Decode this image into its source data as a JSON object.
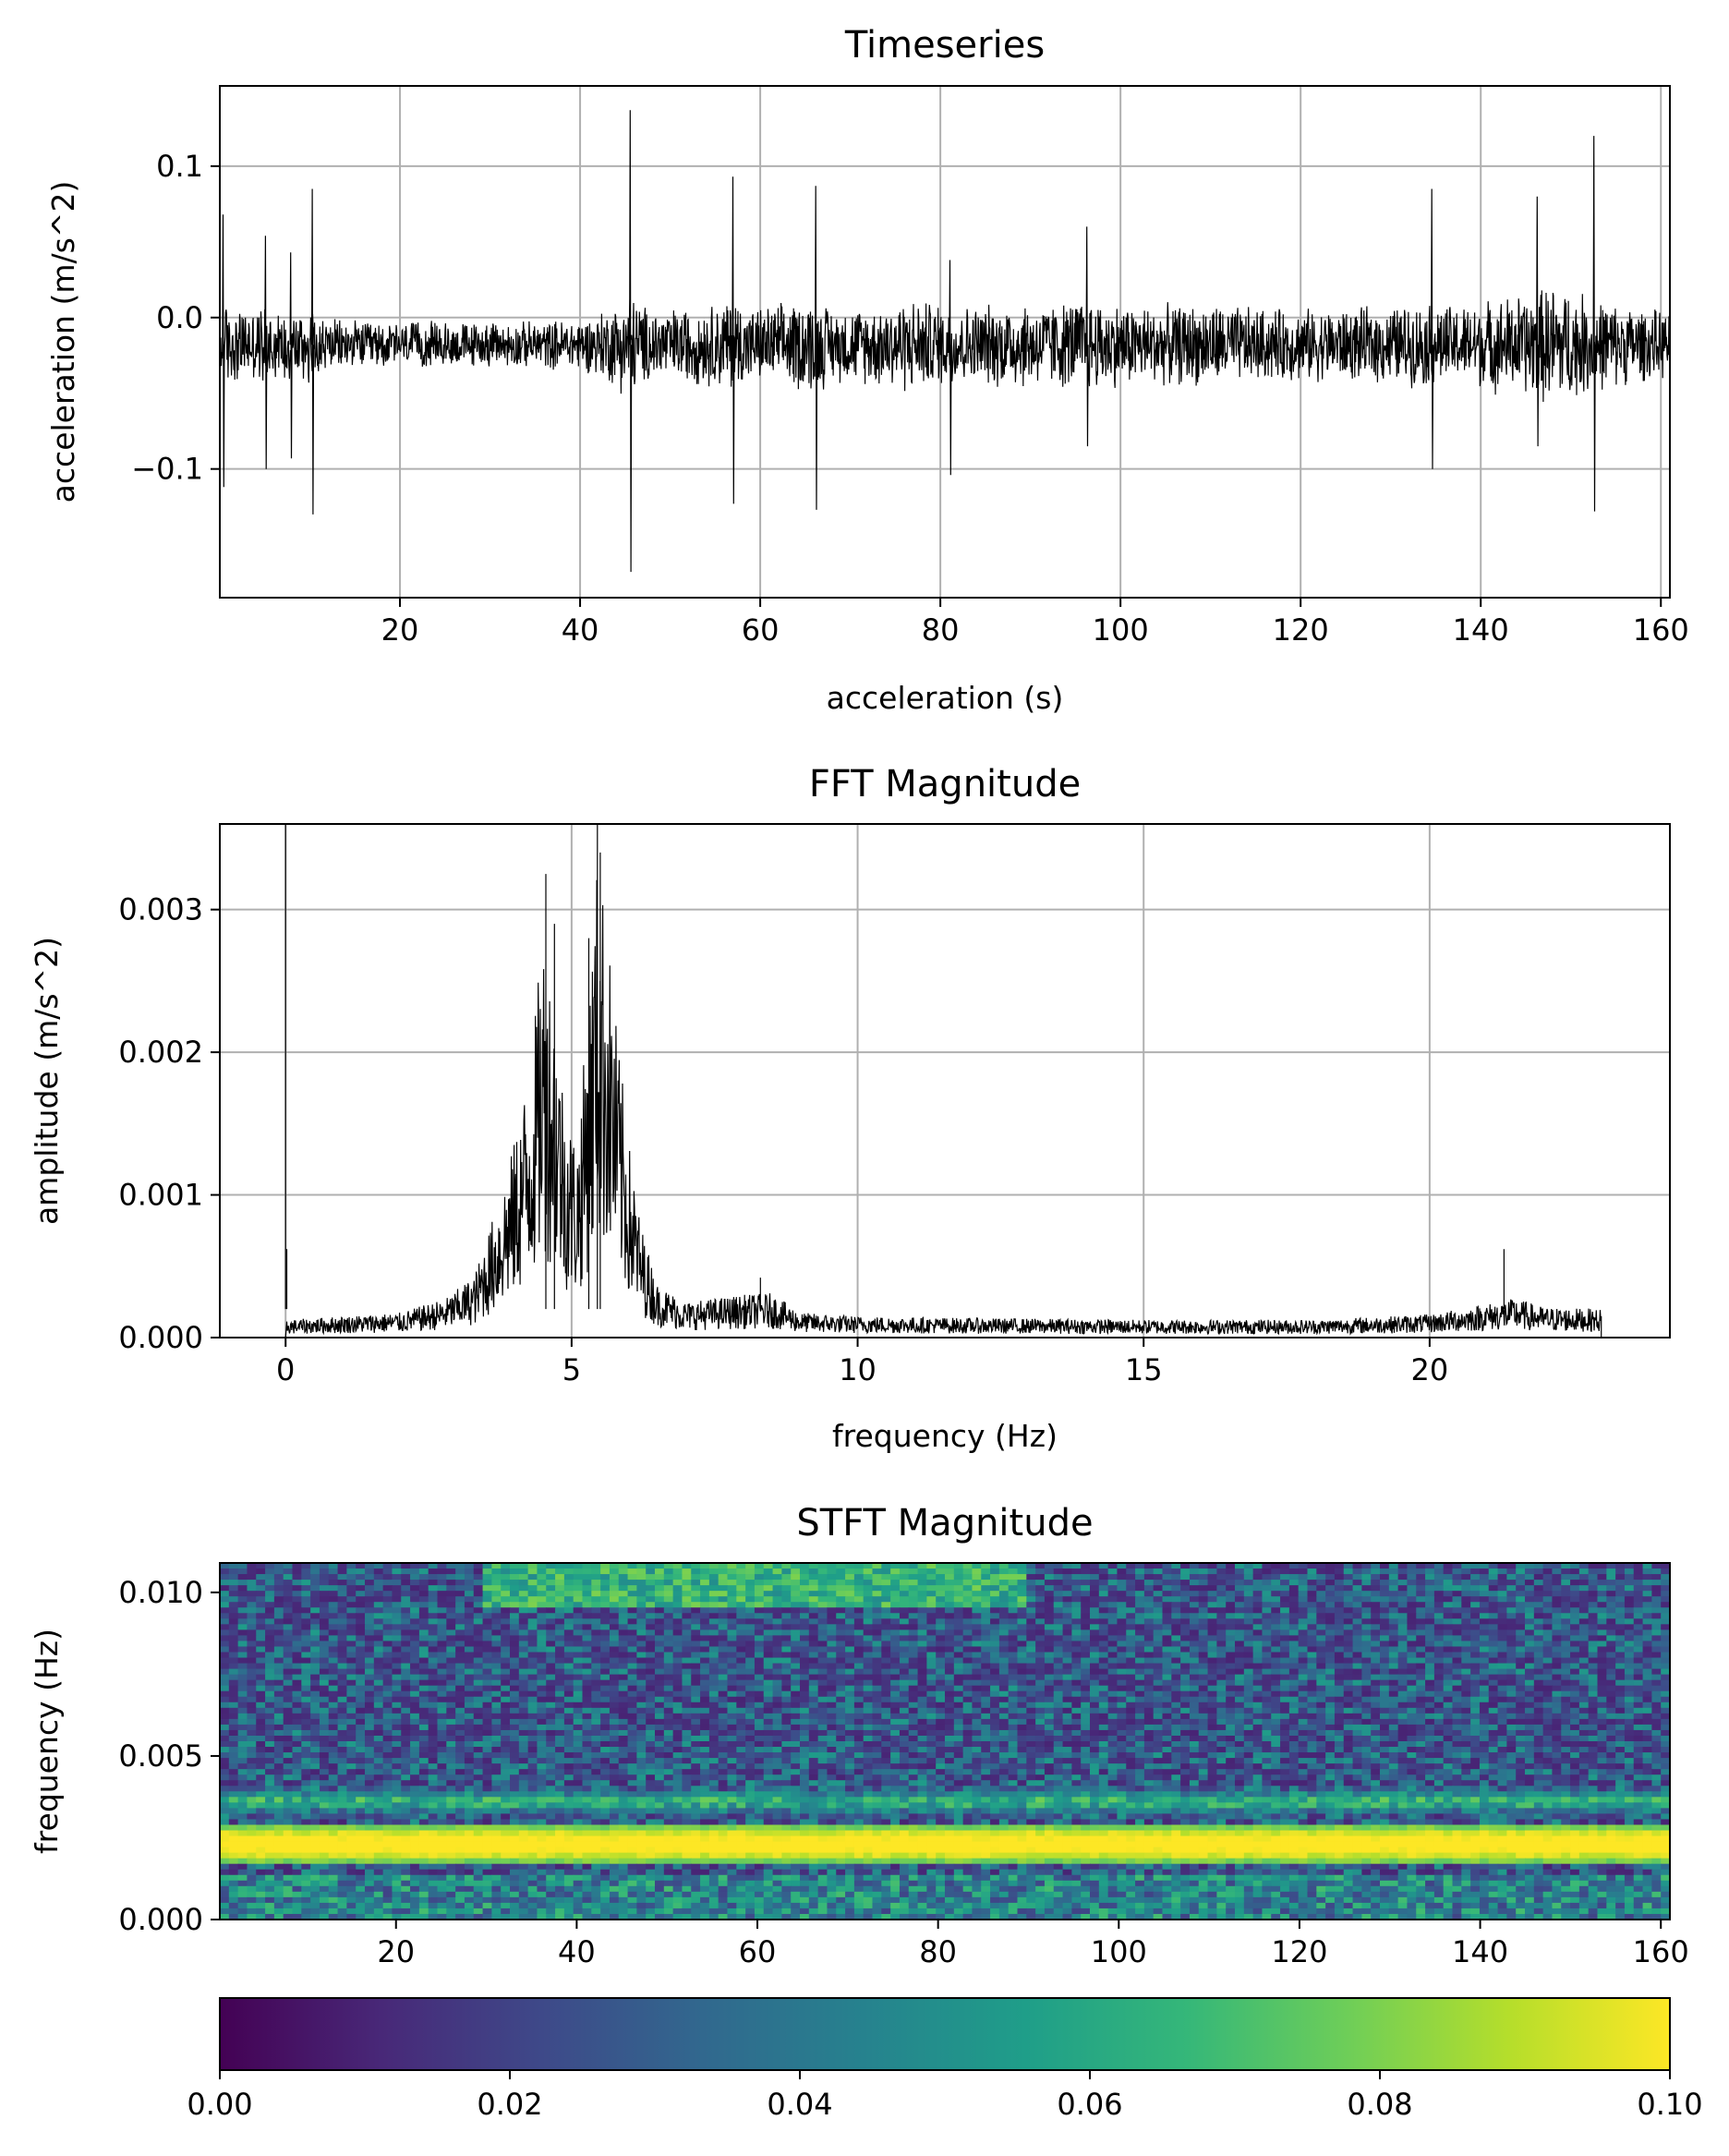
{
  "chart_data": [
    {
      "type": "line",
      "title": "Timeseries",
      "xlabel": "acceleration (s)",
      "ylabel": "acceleration (m/s^2)",
      "xlim": [
        0,
        161
      ],
      "ylim": [
        -0.185,
        0.153
      ],
      "xticks": [
        20,
        40,
        60,
        80,
        100,
        120,
        140,
        160
      ],
      "yticks": [
        -0.1,
        0.0,
        0.1
      ],
      "xtick_labels": [
        "20",
        "40",
        "60",
        "80",
        "100",
        "120",
        "140",
        "160"
      ],
      "ytick_labels": [
        "−0.1",
        "0.0",
        "0.1"
      ],
      "grid": true,
      "line_color": "#000000",
      "baseline": -0.018,
      "envelope": {
        "t": [
          0,
          1,
          3,
          5,
          8,
          10,
          12,
          20,
          24,
          30,
          36,
          41,
          44,
          45.5,
          47,
          50,
          55,
          57,
          59,
          63,
          66,
          68,
          72,
          76,
          80,
          84,
          88,
          92,
          96,
          100,
          104,
          110,
          116,
          120,
          126,
          130,
          134,
          138,
          142,
          146,
          148,
          150,
          152.5,
          155,
          158,
          161
        ],
        "amplitude": [
          0.03,
          0.03,
          0.025,
          0.028,
          0.025,
          0.03,
          0.018,
          0.016,
          0.017,
          0.016,
          0.017,
          0.02,
          0.03,
          0.04,
          0.028,
          0.026,
          0.03,
          0.036,
          0.026,
          0.03,
          0.036,
          0.026,
          0.028,
          0.034,
          0.03,
          0.028,
          0.032,
          0.03,
          0.034,
          0.03,
          0.028,
          0.03,
          0.026,
          0.026,
          0.026,
          0.028,
          0.03,
          0.028,
          0.034,
          0.038,
          0.045,
          0.04,
          0.034,
          0.03,
          0.026,
          0.024
        ]
      },
      "spikes": [
        {
          "t": 0.3,
          "high": 0.068,
          "low": -0.112
        },
        {
          "t": 5,
          "high": 0.054,
          "low": -0.1
        },
        {
          "t": 7.8,
          "high": 0.043,
          "low": -0.093
        },
        {
          "t": 10.2,
          "high": 0.085,
          "low": -0.13
        },
        {
          "t": 45.5,
          "high": 0.137,
          "low": -0.168
        },
        {
          "t": 56.9,
          "high": 0.093,
          "low": -0.123
        },
        {
          "t": 66.1,
          "high": 0.087,
          "low": -0.127
        },
        {
          "t": 81,
          "high": 0.038,
          "low": -0.104
        },
        {
          "t": 96.2,
          "high": 0.06,
          "low": -0.085
        },
        {
          "t": 134.5,
          "high": 0.085,
          "low": -0.1
        },
        {
          "t": 146.2,
          "high": 0.08,
          "low": -0.085
        },
        {
          "t": 152.5,
          "high": 0.12,
          "low": -0.128
        }
      ]
    },
    {
      "type": "line",
      "title": "FFT Magnitude",
      "xlabel": "frequency (Hz)",
      "ylabel": "amplitude (m/s^2)",
      "xlim": [
        -1.15,
        24.2
      ],
      "ylim": [
        0,
        0.0036
      ],
      "xticks": [
        0,
        5,
        10,
        15,
        20
      ],
      "yticks": [
        0.0,
        0.001,
        0.002,
        0.003
      ],
      "xtick_labels": [
        "0",
        "5",
        "10",
        "15",
        "20"
      ],
      "ytick_labels": [
        "0.000",
        "0.001",
        "0.002",
        "0.003"
      ],
      "grid": true,
      "line_color": "#000000",
      "envelope": {
        "f": [
          0.1,
          1,
          2,
          2.8,
          3.3,
          3.7,
          4.0,
          4.3,
          4.5,
          4.7,
          4.9,
          5.1,
          5.3,
          5.45,
          5.6,
          5.8,
          6.0,
          6.2,
          6.5,
          7,
          8,
          8.5,
          9,
          10,
          12,
          15,
          18,
          20,
          21,
          21.5,
          22,
          23
        ],
        "amplitude": [
          0.0001,
          0.00012,
          0.00014,
          0.00022,
          0.00035,
          0.00075,
          0.0011,
          0.0016,
          0.0023,
          0.0019,
          0.0013,
          0.0011,
          0.0019,
          0.0027,
          0.0024,
          0.0017,
          0.0011,
          0.00065,
          0.0003,
          0.0002,
          0.00024,
          0.00025,
          0.00014,
          0.00012,
          0.00011,
          0.0001,
          0.0001,
          0.00013,
          0.00019,
          0.00022,
          0.00017,
          0.00016
        ]
      },
      "spikes": [
        {
          "f": 0.0,
          "value": 0.0036
        },
        {
          "f": 0.02,
          "value": 0.00062
        },
        {
          "f": 4.55,
          "value": 0.00325
        },
        {
          "f": 4.7,
          "value": 0.0029
        },
        {
          "f": 5.45,
          "value": 0.0036
        },
        {
          "f": 5.5,
          "value": 0.0034
        },
        {
          "f": 5.3,
          "value": 0.0028
        },
        {
          "f": 21.3,
          "value": 0.00062
        },
        {
          "f": 8.3,
          "value": 0.00042
        }
      ]
    },
    {
      "type": "heatmap",
      "title": "STFT Magnitude",
      "xlabel": "",
      "ylabel": "frequency (Hz)",
      "xlim": [
        0.5,
        161
      ],
      "ylim": [
        0,
        0.0109
      ],
      "xticks": [
        20,
        40,
        60,
        80,
        100,
        120,
        140,
        160
      ],
      "yticks": [
        0.0,
        0.005,
        0.01
      ],
      "xtick_labels": [
        "20",
        "40",
        "60",
        "80",
        "100",
        "120",
        "140",
        "160"
      ],
      "ytick_labels": [
        "0.000",
        "0.005",
        "0.010"
      ],
      "colormap": "viridis",
      "colorbar": {
        "vmin": 0.0,
        "vmax": 0.1,
        "ticks": [
          0.0,
          0.02,
          0.04,
          0.06,
          0.08,
          0.1
        ],
        "tick_labels": [
          "0.00",
          "0.02",
          "0.04",
          "0.06",
          "0.08",
          "0.10"
        ],
        "colors": [
          "#440154",
          "#482878",
          "#3e4989",
          "#31688e",
          "#26828e",
          "#1f9e89",
          "#35b779",
          "#6ece58",
          "#b5de2b",
          "#fde725"
        ]
      },
      "dominant_band": {
        "center": 0.0023,
        "width": 0.0006,
        "value": 0.1
      },
      "secondary_band": {
        "center": 0.0036,
        "width": 0.0005,
        "value": 0.055
      },
      "high_band": {
        "center": 0.0102,
        "t_range": [
          30,
          90
        ],
        "value": 0.08
      }
    }
  ]
}
